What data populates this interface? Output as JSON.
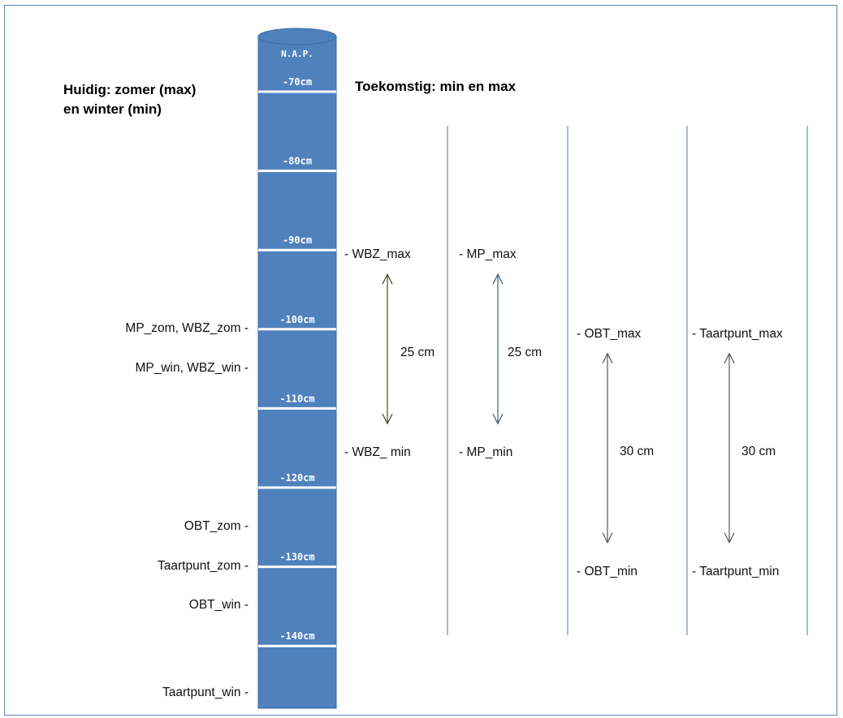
{
  "headings": {
    "current_line1": "Huidig: zomer (max)",
    "current_line2": "en winter (min)",
    "future": "Toekomstig: min en max"
  },
  "gauge": {
    "label": "N.A.P.",
    "ticks": [
      "-70cm",
      "-80cm",
      "-90cm",
      "-100cm",
      "-110cm",
      "-120cm",
      "-130cm",
      "-140cm"
    ],
    "color": "#4f81bd"
  },
  "left_labels": [
    {
      "text": "MP_zom, WBZ_zom -",
      "value_cm": -100
    },
    {
      "text": "MP_win, WBZ_win -",
      "value_cm": -105
    },
    {
      "text": "OBT_zom -",
      "value_cm": -125
    },
    {
      "text": "Taartpunt_zom -",
      "value_cm": -130
    },
    {
      "text": "OBT_win -",
      "value_cm": -135
    },
    {
      "text": "Taartpunt_win -",
      "value_cm": -146
    }
  ],
  "future_columns": [
    {
      "max_label": "- WBZ_max",
      "min_label": "- WBZ_ min",
      "range_label": "25 cm",
      "max_cm": -90,
      "min_cm": -115,
      "arrow_color": "#4a4a1e"
    },
    {
      "max_label": "- MP_max",
      "min_label": "- MP_min",
      "range_label": "25 cm",
      "max_cm": -90,
      "min_cm": -115,
      "arrow_color": "#3d5d86"
    },
    {
      "max_label": "- OBT_max",
      "min_label": "- OBT_min",
      "range_label": "30 cm",
      "max_cm": -100,
      "min_cm": -130,
      "arrow_color": "#555555"
    },
    {
      "max_label": "- Taartpunt_max",
      "min_label": "- Taartpunt_min",
      "range_label": "30 cm",
      "max_cm": -100,
      "min_cm": -130,
      "arrow_color": "#555555"
    }
  ]
}
